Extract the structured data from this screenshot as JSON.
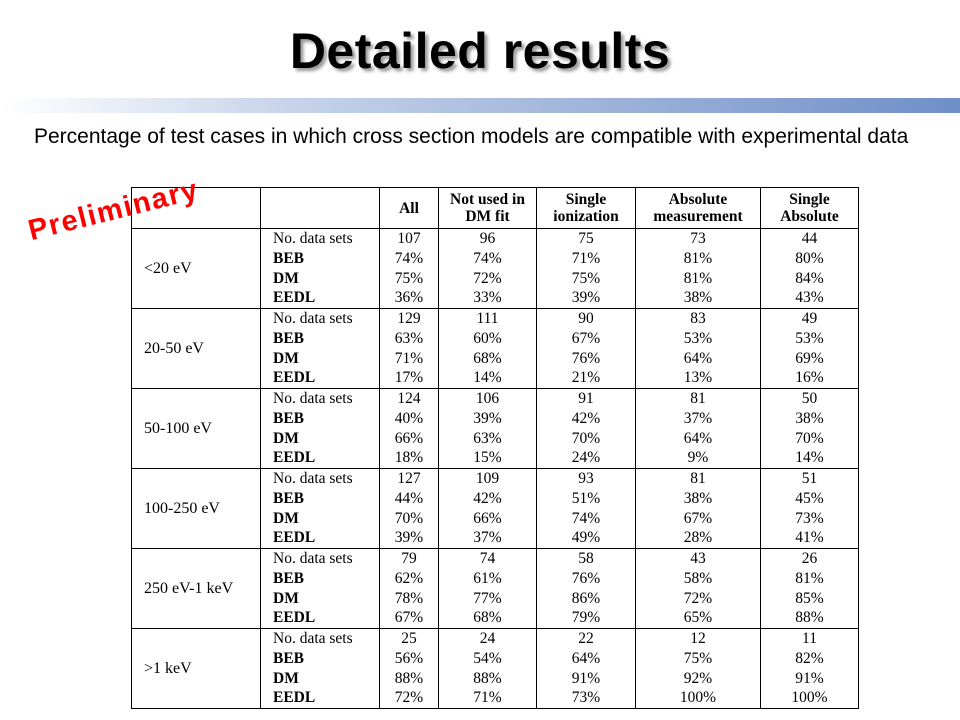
{
  "slide": {
    "title": "Detailed results",
    "subtitle": "Percentage of test cases in which cross section models are compatible with experimental data",
    "stamp": "Preliminary",
    "accent_color": "#6f8fc7",
    "stamp_color": "#ff0000"
  },
  "table": {
    "headers": {
      "all": "All",
      "not_used": "Not used in DM fit",
      "single": "Single ionization",
      "absolute": "Absolute measurement",
      "single_absolute": "Single Absolute"
    },
    "metric_labels": [
      "No. data sets",
      "BEB",
      "DM",
      "EEDL"
    ],
    "groups": [
      {
        "range": "<20 eV",
        "all": [
          "107",
          "74%",
          "75%",
          "36%"
        ],
        "not_used": [
          "96",
          "74%",
          "72%",
          "33%"
        ],
        "single": [
          "75",
          "71%",
          "75%",
          "39%"
        ],
        "absolute": [
          "73",
          "81%",
          "81%",
          "38%"
        ],
        "single_absolute": [
          "44",
          "80%",
          "84%",
          "43%"
        ]
      },
      {
        "range": "20-50 eV",
        "all": [
          "129",
          "63%",
          "71%",
          "17%"
        ],
        "not_used": [
          "111",
          "60%",
          "68%",
          "14%"
        ],
        "single": [
          "90",
          "67%",
          "76%",
          "21%"
        ],
        "absolute": [
          "83",
          "53%",
          "64%",
          "13%"
        ],
        "single_absolute": [
          "49",
          "53%",
          "69%",
          "16%"
        ]
      },
      {
        "range": "50-100 eV",
        "all": [
          "124",
          "40%",
          "66%",
          "18%"
        ],
        "not_used": [
          "106",
          "39%",
          "63%",
          "15%"
        ],
        "single": [
          "91",
          "42%",
          "70%",
          "24%"
        ],
        "absolute": [
          "81",
          "37%",
          "64%",
          "9%"
        ],
        "single_absolute": [
          "50",
          "38%",
          "70%",
          "14%"
        ]
      },
      {
        "range": "100-250 eV",
        "all": [
          "127",
          "44%",
          "70%",
          "39%"
        ],
        "not_used": [
          "109",
          "42%",
          "66%",
          "37%"
        ],
        "single": [
          "93",
          "51%",
          "74%",
          "49%"
        ],
        "absolute": [
          "81",
          "38%",
          "67%",
          "28%"
        ],
        "single_absolute": [
          "51",
          "45%",
          "73%",
          "41%"
        ]
      },
      {
        "range": "250 eV-1 keV",
        "all": [
          "79",
          "62%",
          "78%",
          "67%"
        ],
        "not_used": [
          "74",
          "61%",
          "77%",
          "68%"
        ],
        "single": [
          "58",
          "76%",
          "86%",
          "79%"
        ],
        "absolute": [
          "43",
          "58%",
          "72%",
          "65%"
        ],
        "single_absolute": [
          "26",
          "81%",
          "85%",
          "88%"
        ]
      },
      {
        "range": ">1 keV",
        "all": [
          "25",
          "56%",
          "88%",
          "72%"
        ],
        "not_used": [
          "24",
          "54%",
          "88%",
          "71%"
        ],
        "single": [
          "22",
          "64%",
          "91%",
          "73%"
        ],
        "absolute": [
          "12",
          "75%",
          "92%",
          "100%"
        ],
        "single_absolute": [
          "11",
          "82%",
          "91%",
          "100%"
        ]
      }
    ]
  }
}
